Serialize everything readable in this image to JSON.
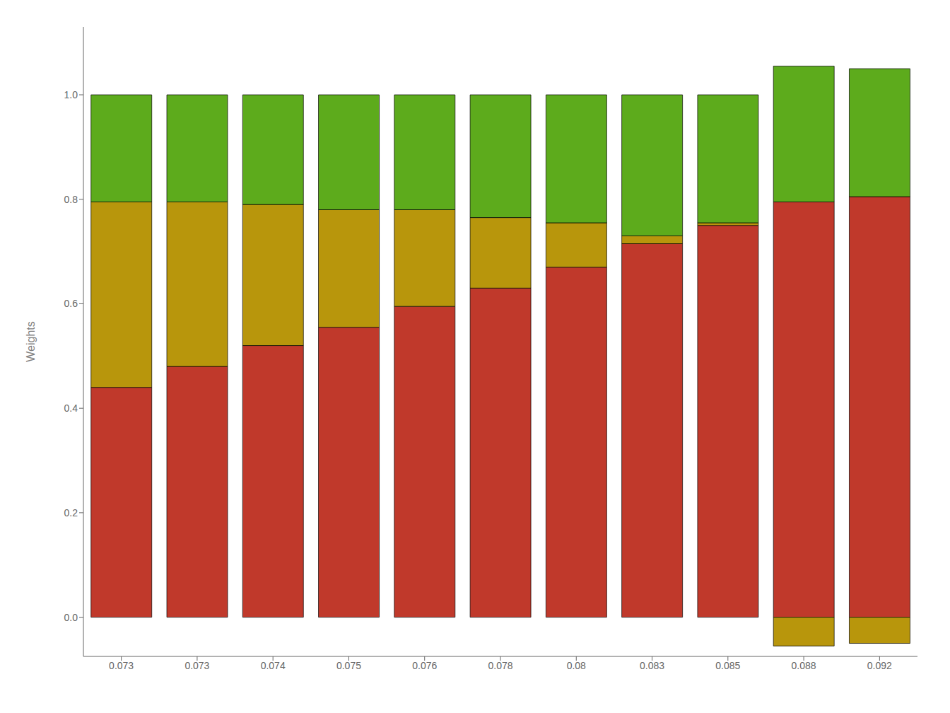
{
  "chart_data": {
    "type": "bar",
    "stacked": true,
    "grid": false,
    "ylabel": "Weights",
    "categories": [
      "0.073",
      "0.073",
      "0.074",
      "0.075",
      "0.076",
      "0.078",
      "0.08",
      "0.083",
      "0.085",
      "0.088",
      "0.092"
    ],
    "series": [
      {
        "color": "#c0392b",
        "values": [
          0.44,
          0.48,
          0.52,
          0.555,
          0.595,
          0.63,
          0.67,
          0.715,
          0.75,
          0.795,
          0.805
        ]
      },
      {
        "color": "#b8960c",
        "values": [
          0.355,
          0.315,
          0.27,
          0.225,
          0.185,
          0.135,
          0.085,
          0.015,
          0.005,
          -0.055,
          -0.05
        ]
      },
      {
        "color": "#5dab1c",
        "values": [
          0.205,
          0.205,
          0.21,
          0.22,
          0.22,
          0.235,
          0.245,
          0.27,
          0.245,
          0.26,
          0.245
        ]
      }
    ],
    "ylim": [
      -0.075,
      1.13
    ],
    "yticks": [
      {
        "value": 0,
        "label": "0.0"
      },
      0.2,
      0.4,
      0.6,
      0.8,
      {
        "value": 1,
        "label": "1.0"
      }
    ]
  }
}
